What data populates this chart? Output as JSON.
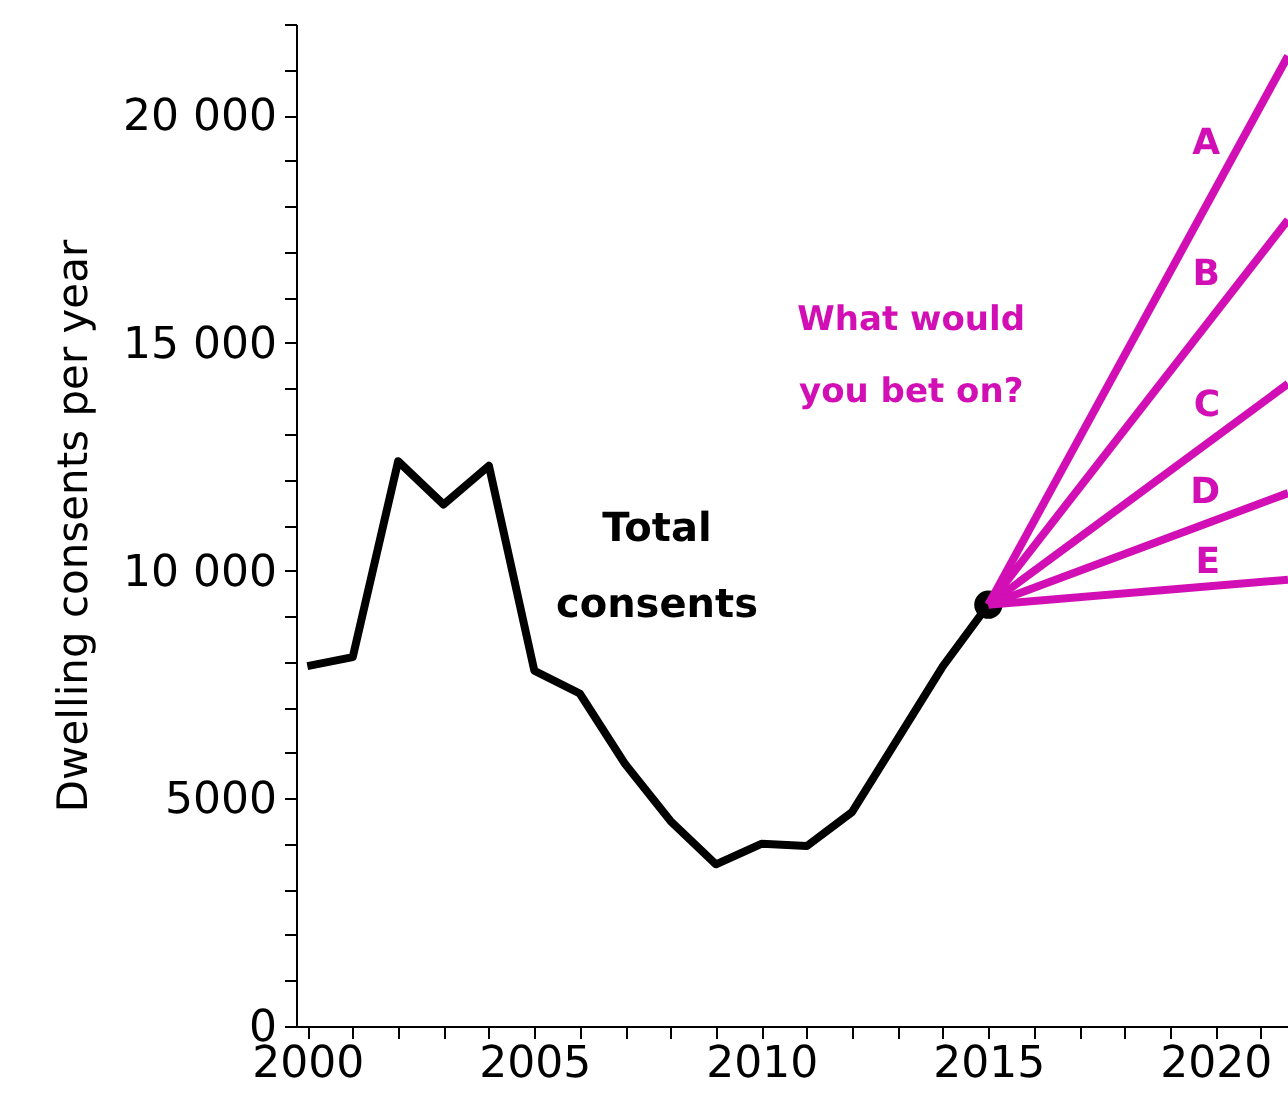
{
  "chart_data": {
    "type": "line",
    "ylabel": "Dwelling consents per year",
    "xlim": [
      1999.75,
      2021.6
    ],
    "ylim": [
      0,
      22000
    ],
    "xticks": [
      2000,
      {
        "value": 2001,
        "label": null
      },
      {
        "value": 2002,
        "label": null
      },
      {
        "value": 2003,
        "label": null
      },
      {
        "value": 2004,
        "label": null
      },
      2005,
      {
        "value": 2006,
        "label": null
      },
      {
        "value": 2007,
        "label": null
      },
      {
        "value": 2008,
        "label": null
      },
      {
        "value": 2009,
        "label": null
      },
      2010,
      {
        "value": 2011,
        "label": null
      },
      {
        "value": 2012,
        "label": null
      },
      {
        "value": 2013,
        "label": null
      },
      {
        "value": 2014,
        "label": null
      },
      2015,
      {
        "value": 2016,
        "label": null
      },
      {
        "value": 2017,
        "label": null
      },
      {
        "value": 2018,
        "label": null
      },
      {
        "value": 2019,
        "label": null
      },
      2020,
      {
        "value": 2021,
        "label": null
      }
    ],
    "yticks": [
      0,
      {
        "value": 1000,
        "label": null
      },
      {
        "value": 2000,
        "label": null
      },
      {
        "value": 3000,
        "label": null
      },
      {
        "value": 4000,
        "label": null
      },
      5000,
      {
        "value": 6000,
        "label": null
      },
      {
        "value": 7000,
        "label": null
      },
      {
        "value": 8000,
        "label": null
      },
      {
        "value": 9000,
        "label": null
      },
      {
        "value": 10000,
        "label": "10 000"
      },
      {
        "value": 11000,
        "label": null
      },
      {
        "value": 12000,
        "label": null
      },
      {
        "value": 13000,
        "label": null
      },
      {
        "value": 14000,
        "label": null
      },
      {
        "value": 15000,
        "label": "15 000"
      },
      {
        "value": 16000,
        "label": null
      },
      {
        "value": 17000,
        "label": null
      },
      {
        "value": 18000,
        "label": null
      },
      {
        "value": 19000,
        "label": null
      },
      {
        "value": 20000,
        "label": "20 000"
      },
      {
        "value": 21000,
        "label": null
      },
      {
        "value": 22000,
        "label": null
      }
    ],
    "grid": false,
    "line_style": "solid",
    "series": [
      {
        "name": "Total consents",
        "color": "#000000",
        "x": [
          2000,
          2001,
          2002,
          2003,
          2004,
          2005,
          2006,
          2007,
          2008,
          2009,
          2010,
          2011,
          2012,
          2013,
          2014,
          2015
        ],
        "values": [
          7900,
          8100,
          12400,
          11450,
          12300,
          7800,
          7300,
          5750,
          4500,
          3550,
          4000,
          3950,
          4700,
          6300,
          7900,
          9250
        ]
      },
      {
        "type": "scatter",
        "marker": "circle",
        "color": "#000000",
        "x": [
          2015
        ],
        "values": [
          9250
        ]
      },
      {
        "name": "A",
        "color": "#d10fb4",
        "x": [
          2015,
          2021.6
        ],
        "values": [
          9250,
          21300
        ]
      },
      {
        "name": "B",
        "color": "#d10fb4",
        "x": [
          2015,
          2021.6
        ],
        "values": [
          9250,
          17700
        ]
      },
      {
        "name": "C",
        "color": "#d10fb4",
        "x": [
          2015,
          2021.6
        ],
        "values": [
          9250,
          14100
        ]
      },
      {
        "name": "D",
        "color": "#d10fb4",
        "x": [
          2015,
          2021.6
        ],
        "values": [
          9250,
          11700
        ]
      },
      {
        "name": "E",
        "color": "#d10fb4",
        "x": [
          2015,
          2021.6
        ],
        "values": [
          9250,
          9800
        ]
      }
    ],
    "annotations": [
      "What would\nyou bet on?"
    ]
  }
}
